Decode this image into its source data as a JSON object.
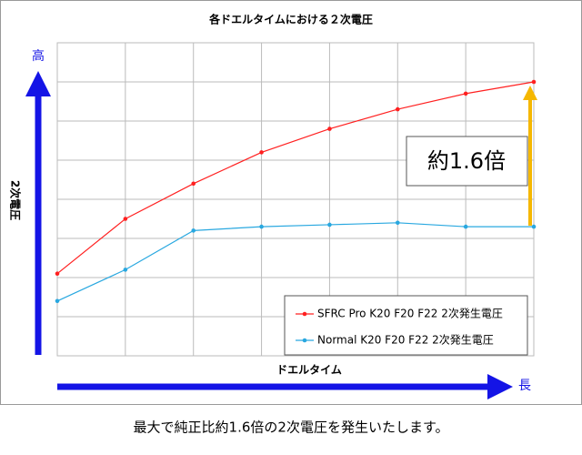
{
  "chart_data": {
    "type": "line",
    "title": "各ドエルタイムにおける２次電圧",
    "x_label": "ドエルタイム",
    "y_label": "2次電圧",
    "y_high_label": "高",
    "x_long_label": "長",
    "annotation": "約1.6倍",
    "caption": "最大で純正比約1.6倍の2次電圧を発生いたします。",
    "categories": [
      null,
      null,
      null,
      null,
      null,
      null,
      null,
      null
    ],
    "ylim": [
      0,
      8
    ],
    "grid": true,
    "legend": "lower right",
    "series": [
      {
        "name": "SFRC Pro K20 F20 F22 2次発生電圧",
        "color": "#ff2020",
        "values": [
          2.1,
          3.5,
          4.4,
          5.2,
          5.8,
          6.3,
          6.7,
          7.0
        ]
      },
      {
        "name": "Normal K20 F20 F22 2次発生電圧",
        "color": "#29a8e0",
        "values": [
          1.4,
          2.2,
          3.2,
          3.3,
          3.35,
          3.4,
          3.3,
          3.3
        ]
      }
    ]
  }
}
